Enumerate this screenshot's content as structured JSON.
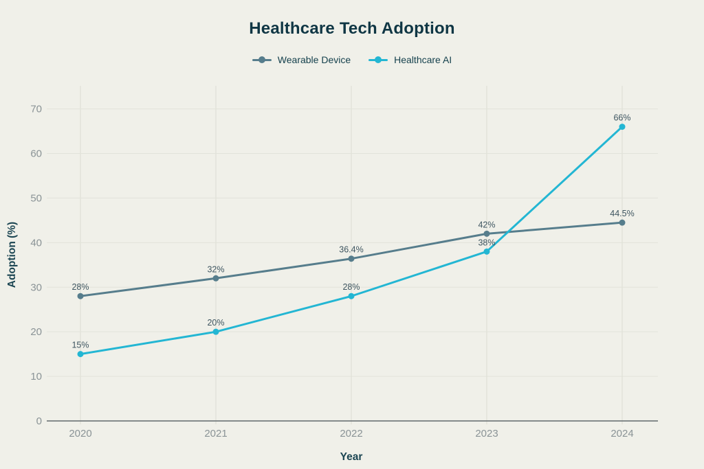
{
  "title": "Healthcare Tech Adoption",
  "legend": {
    "items": [
      {
        "label": "Wearable Device",
        "color": "#567d8c"
      },
      {
        "label": "Healthcare AI",
        "color": "#23b6d3"
      }
    ]
  },
  "chart_data": {
    "type": "line",
    "title": "Healthcare Tech Adoption",
    "xlabel": "Year",
    "ylabel": "Adoption (%)",
    "categories": [
      "2020",
      "2021",
      "2022",
      "2023",
      "2024"
    ],
    "series": [
      {
        "name": "Wearable Device",
        "color": "#567d8c",
        "values": [
          28,
          32,
          36.4,
          42,
          44.5
        ],
        "labels": [
          "28%",
          "32%",
          "36.4%",
          "42%",
          "44.5%"
        ]
      },
      {
        "name": "Healthcare AI",
        "color": "#23b6d3",
        "values": [
          15,
          20,
          28,
          38,
          66
        ],
        "labels": [
          "15%",
          "20%",
          "28%",
          "38%",
          "66%"
        ]
      }
    ],
    "ylim": [
      0,
      70
    ],
    "yticks": [
      0,
      10,
      20,
      30,
      40,
      50,
      60,
      70
    ],
    "grid": true,
    "legend_position": "top"
  },
  "colors": {
    "background": "#f0f0e9",
    "grid": "#e2e3da",
    "axis": "#60696c",
    "tick_label": "#8a9396",
    "title": "#0f3644",
    "axis_title": "#1b4552",
    "data_label": "#3e5560"
  }
}
